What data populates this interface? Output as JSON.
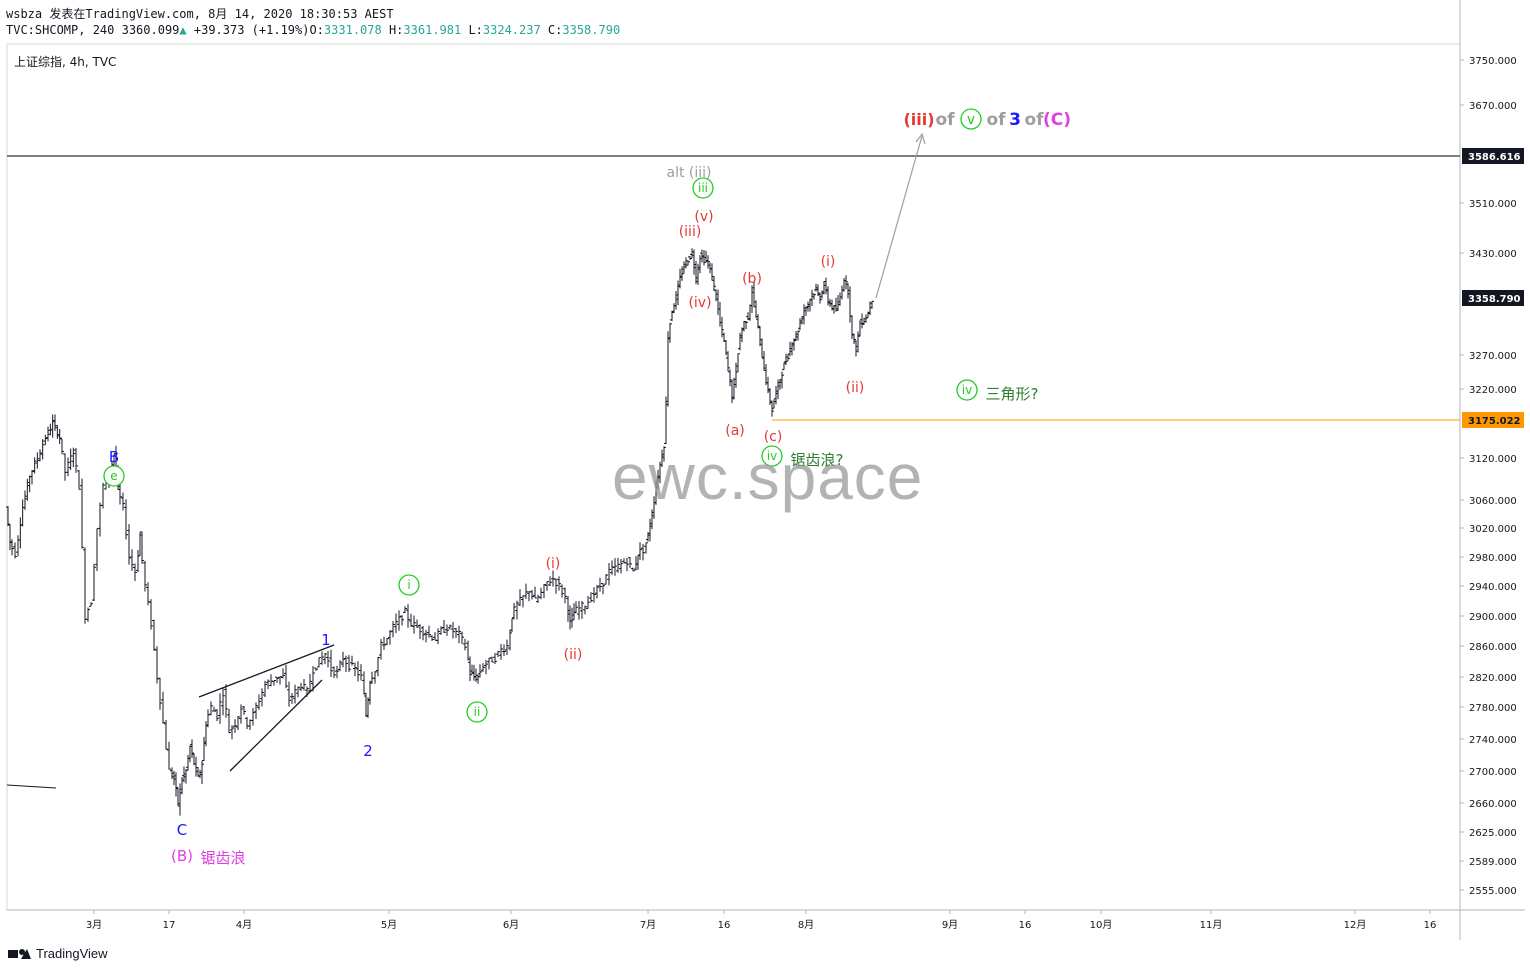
{
  "header": {
    "line1": "wsbza 发表在TradingView.com, 8月 14, 2020 18:30:53 AEST",
    "symbol": "TVC:SHCOMP, 240",
    "last": "3360.099",
    "change": "+39.373 (+1.19%)",
    "o_label": "O:",
    "o": "3331.078",
    "h_label": "H:",
    "h": "3361.981",
    "l_label": "L:",
    "l": "3324.237",
    "c_label": "C:",
    "c": "3358.790"
  },
  "legend": "上证综指, 4h, TVC",
  "watermark": "ewc.space",
  "footer": {
    "brand": "TradingView"
  },
  "chart_data": {
    "type": "candlestick",
    "title": "上证综指, 4h, TVC",
    "ylim": [
      2530,
      3775
    ],
    "y_ticks": [
      "3750.000",
      "3670.000",
      "3510.000",
      "3430.000",
      "3270.000",
      "3220.000",
      "3120.000",
      "3060.000",
      "3020.000",
      "2980.000",
      "2940.000",
      "2900.000",
      "2860.000",
      "2820.000",
      "2780.000",
      "2740.000",
      "2700.000",
      "2660.000",
      "2625.000",
      "2589.000",
      "2555.000"
    ],
    "x_ticks": [
      "3月",
      "17",
      "4月",
      "5月",
      "6月",
      "7月",
      "16",
      "8月",
      "9月",
      "16",
      "10月",
      "11月",
      "12月",
      "16"
    ],
    "price_labels": [
      {
        "value": "3586.616",
        "kind": "black"
      },
      {
        "value": "3358.790",
        "kind": "dark"
      },
      {
        "value": "3175.022",
        "kind": "orange"
      }
    ],
    "horizontal_levels": [
      {
        "value": 3586.616,
        "color": "#000000"
      },
      {
        "value": 3175.022,
        "color": "#ff9800"
      }
    ],
    "annotations": [
      {
        "text": "B",
        "color": "#1a1aff"
      },
      {
        "text": "e",
        "color": "#22cc22",
        "circled": true
      },
      {
        "text": "C",
        "color": "#1a1aff"
      },
      {
        "text": "(B)",
        "color": "#e040e0"
      },
      {
        "text": "锯齿浪",
        "color": "#e040e0"
      },
      {
        "text": "1",
        "color": "#1a1aff"
      },
      {
        "text": "2",
        "color": "#1a1aff"
      },
      {
        "text": "i",
        "color": "#22cc22",
        "circled": true
      },
      {
        "text": "ii",
        "color": "#22cc22",
        "circled": true
      },
      {
        "text": "(i)",
        "color": "#e53935"
      },
      {
        "text": "(ii)",
        "color": "#e53935"
      },
      {
        "text": "alt (iii)",
        "color": "#9e9e9e"
      },
      {
        "text": "iii",
        "color": "#22cc22",
        "circled": true
      },
      {
        "text": "(v)",
        "color": "#e53935"
      },
      {
        "text": "(iii)",
        "color": "#e53935"
      },
      {
        "text": "(iv)",
        "color": "#e53935"
      },
      {
        "text": "(a)",
        "color": "#e53935"
      },
      {
        "text": "(b)",
        "color": "#e53935"
      },
      {
        "text": "(c)",
        "color": "#e53935"
      },
      {
        "text": "iv",
        "color": "#22cc22",
        "circled": true
      },
      {
        "text": "锯齿浪?",
        "color": "#2e7d32"
      },
      {
        "text": "(i)",
        "color": "#e53935"
      },
      {
        "text": "(ii)",
        "color": "#e53935"
      },
      {
        "text": "iv",
        "color": "#22cc22",
        "circled": true
      },
      {
        "text": "三角形?",
        "color": "#2e7d32"
      }
    ],
    "target_label": [
      {
        "text": "(iii)",
        "color": "#e53935"
      },
      {
        "text": "of",
        "color": "#9e9e9e"
      },
      {
        "text": "v",
        "color": "#22cc22",
        "circled": true
      },
      {
        "text": "of",
        "color": "#9e9e9e"
      },
      {
        "text": "3",
        "color": "#1a1aff"
      },
      {
        "text": "of",
        "color": "#9e9e9e"
      },
      {
        "text": "(C)",
        "color": "#e040e0"
      }
    ],
    "path": [
      [
        8,
        3050
      ],
      [
        12,
        3000
      ],
      [
        18,
        2985
      ],
      [
        25,
        3050
      ],
      [
        32,
        3095
      ],
      [
        40,
        3120
      ],
      [
        48,
        3150
      ],
      [
        55,
        3170
      ],
      [
        62,
        3150
      ],
      [
        68,
        3100
      ],
      [
        76,
        3130
      ],
      [
        82,
        3080
      ],
      [
        88,
        2900
      ],
      [
        94,
        2920
      ],
      [
        100,
        3020
      ],
      [
        106,
        3080
      ],
      [
        112,
        3095
      ],
      [
        116,
        3125
      ],
      [
        120,
        3075
      ],
      [
        126,
        3050
      ],
      [
        132,
        2980
      ],
      [
        138,
        2960
      ],
      [
        142,
        3010
      ],
      [
        148,
        2940
      ],
      [
        154,
        2890
      ],
      [
        160,
        2820
      ],
      [
        166,
        2760
      ],
      [
        172,
        2700
      ],
      [
        176,
        2690
      ],
      [
        180,
        2660
      ],
      [
        184,
        2690
      ],
      [
        188,
        2700
      ],
      [
        192,
        2730
      ],
      [
        196,
        2710
      ],
      [
        200,
        2690
      ],
      [
        204,
        2710
      ],
      [
        208,
        2760
      ],
      [
        214,
        2780
      ],
      [
        220,
        2770
      ],
      [
        226,
        2800
      ],
      [
        232,
        2750
      ],
      [
        238,
        2760
      ],
      [
        244,
        2780
      ],
      [
        250,
        2760
      ],
      [
        256,
        2770
      ],
      [
        262,
        2790
      ],
      [
        268,
        2810
      ],
      [
        274,
        2815
      ],
      [
        280,
        2820
      ],
      [
        286,
        2820
      ],
      [
        292,
        2790
      ],
      [
        298,
        2800
      ],
      [
        304,
        2810
      ],
      [
        310,
        2800
      ],
      [
        316,
        2830
      ],
      [
        322,
        2840
      ],
      [
        328,
        2850
      ],
      [
        334,
        2830
      ],
      [
        340,
        2825
      ],
      [
        346,
        2845
      ],
      [
        352,
        2835
      ],
      [
        358,
        2830
      ],
      [
        364,
        2820
      ],
      [
        368,
        2770
      ],
      [
        372,
        2815
      ],
      [
        378,
        2830
      ],
      [
        384,
        2860
      ],
      [
        390,
        2870
      ],
      [
        396,
        2885
      ],
      [
        402,
        2895
      ],
      [
        408,
        2905
      ],
      [
        414,
        2890
      ],
      [
        420,
        2885
      ],
      [
        426,
        2880
      ],
      [
        432,
        2875
      ],
      [
        438,
        2870
      ],
      [
        444,
        2880
      ],
      [
        450,
        2885
      ],
      [
        456,
        2880
      ],
      [
        462,
        2875
      ],
      [
        468,
        2860
      ],
      [
        472,
        2825
      ],
      [
        476,
        2820
      ],
      [
        480,
        2820
      ],
      [
        486,
        2835
      ],
      [
        492,
        2840
      ],
      [
        498,
        2845
      ],
      [
        504,
        2855
      ],
      [
        510,
        2860
      ],
      [
        514,
        2900
      ],
      [
        520,
        2915
      ],
      [
        526,
        2925
      ],
      [
        532,
        2935
      ],
      [
        538,
        2920
      ],
      [
        544,
        2930
      ],
      [
        550,
        2945
      ],
      [
        556,
        2950
      ],
      [
        562,
        2940
      ],
      [
        568,
        2925
      ],
      [
        572,
        2890
      ],
      [
        576,
        2905
      ],
      [
        582,
        2910
      ],
      [
        588,
        2915
      ],
      [
        594,
        2925
      ],
      [
        600,
        2935
      ],
      [
        606,
        2945
      ],
      [
        612,
        2960
      ],
      [
        618,
        2965
      ],
      [
        624,
        2970
      ],
      [
        630,
        2975
      ],
      [
        636,
        2960
      ],
      [
        640,
        2985
      ],
      [
        646,
        2990
      ],
      [
        650,
        3010
      ],
      [
        654,
        3040
      ],
      [
        658,
        3080
      ],
      [
        662,
        3110
      ],
      [
        666,
        3140
      ],
      [
        668,
        3200
      ],
      [
        670,
        3300
      ],
      [
        674,
        3340
      ],
      [
        678,
        3360
      ],
      [
        682,
        3390
      ],
      [
        686,
        3410
      ],
      [
        690,
        3420
      ],
      [
        694,
        3430
      ],
      [
        698,
        3390
      ],
      [
        702,
        3425
      ],
      [
        706,
        3420
      ],
      [
        710,
        3415
      ],
      [
        714,
        3390
      ],
      [
        718,
        3360
      ],
      [
        722,
        3320
      ],
      [
        726,
        3290
      ],
      [
        730,
        3250
      ],
      [
        734,
        3210
      ],
      [
        738,
        3250
      ],
      [
        742,
        3300
      ],
      [
        746,
        3320
      ],
      [
        750,
        3330
      ],
      [
        754,
        3370
      ],
      [
        758,
        3330
      ],
      [
        762,
        3290
      ],
      [
        766,
        3250
      ],
      [
        770,
        3215
      ],
      [
        774,
        3190
      ],
      [
        778,
        3215
      ],
      [
        782,
        3235
      ],
      [
        786,
        3255
      ],
      [
        790,
        3270
      ],
      [
        794,
        3290
      ],
      [
        798,
        3300
      ],
      [
        802,
        3320
      ],
      [
        806,
        3340
      ],
      [
        810,
        3350
      ],
      [
        814,
        3365
      ],
      [
        818,
        3370
      ],
      [
        822,
        3360
      ],
      [
        826,
        3380
      ],
      [
        830,
        3355
      ],
      [
        834,
        3345
      ],
      [
        838,
        3340
      ],
      [
        842,
        3360
      ],
      [
        846,
        3390
      ],
      [
        850,
        3370
      ],
      [
        854,
        3300
      ],
      [
        858,
        3280
      ],
      [
        862,
        3320
      ],
      [
        866,
        3325
      ],
      [
        870,
        3335
      ],
      [
        874,
        3358
      ]
    ]
  }
}
